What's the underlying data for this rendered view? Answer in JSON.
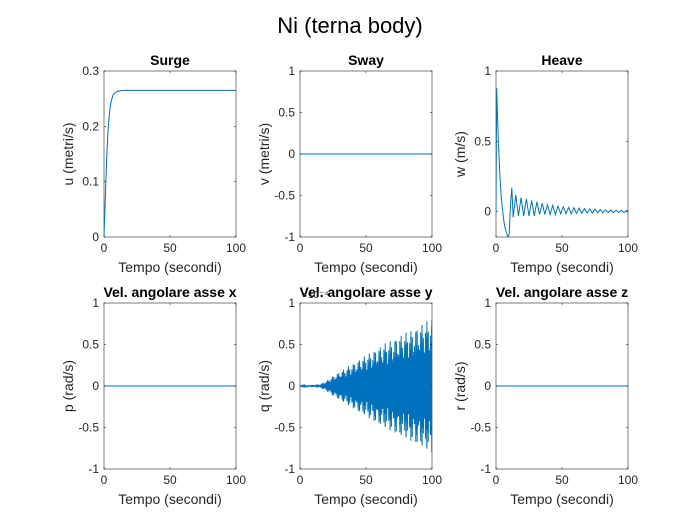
{
  "figure_title": "Ni (terna body)",
  "colors": {
    "line": "#0072BD",
    "axis": "#262626"
  },
  "chart_data": [
    {
      "type": "line",
      "title": "Surge",
      "xlabel": "Tempo (secondi)",
      "ylabel": "u (metri/s)",
      "xlim": [
        0,
        100
      ],
      "ylim": [
        0,
        0.3
      ],
      "xticks": [
        0,
        50,
        100
      ],
      "yticks": [
        0,
        0.1,
        0.2,
        0.3
      ],
      "grid": false,
      "series": [
        {
          "x": [
            0,
            1,
            2,
            3,
            4,
            5,
            6,
            7,
            8,
            10,
            12,
            15,
            20,
            30,
            50,
            75,
            100
          ],
          "y": [
            0,
            0.07,
            0.14,
            0.19,
            0.22,
            0.24,
            0.25,
            0.257,
            0.26,
            0.263,
            0.264,
            0.265,
            0.265,
            0.265,
            0.265,
            0.265,
            0.265
          ]
        }
      ]
    },
    {
      "type": "line",
      "title": "Sway",
      "xlabel": "Tempo (secondi)",
      "ylabel": "v (metri/s)",
      "xlim": [
        0,
        100
      ],
      "ylim": [
        -1,
        1
      ],
      "xticks": [
        0,
        50,
        100
      ],
      "yticks": [
        -1,
        -0.5,
        0,
        0.5,
        1
      ],
      "grid": false,
      "series": [
        {
          "x": [
            0,
            100
          ],
          "y": [
            0,
            0
          ]
        }
      ]
    },
    {
      "type": "line",
      "title": "Heave",
      "xlabel": "Tempo (secondi)",
      "ylabel": "w (m/s)",
      "xlim": [
        0,
        100
      ],
      "ylim": [
        -0.18,
        1
      ],
      "xticks": [
        0,
        50,
        100
      ],
      "yticks": [
        0,
        0.5,
        1
      ],
      "grid": false,
      "series": [
        {
          "x": [
            0,
            0.5,
            1,
            2,
            3,
            4,
            5,
            6,
            7,
            8,
            9,
            10,
            11,
            12,
            13,
            15,
            17,
            19,
            21,
            23,
            25,
            27,
            29,
            31,
            33,
            35,
            37,
            39,
            41,
            43,
            45,
            47,
            49,
            51,
            53,
            55,
            57,
            59,
            61,
            63,
            65,
            67,
            69,
            71,
            73,
            75,
            77,
            79,
            81,
            83,
            85,
            87,
            89,
            91,
            93,
            95,
            97,
            99,
            100
          ],
          "y": [
            0,
            0.88,
            0.72,
            0.45,
            0.25,
            0.1,
            0.01,
            -0.07,
            -0.12,
            -0.15,
            -0.18,
            -0.16,
            0.05,
            0.17,
            -0.04,
            0.12,
            -0.03,
            0.1,
            -0.03,
            0.09,
            -0.03,
            0.08,
            -0.03,
            0.07,
            -0.02,
            0.06,
            -0.02,
            0.05,
            -0.02,
            0.045,
            -0.02,
            0.04,
            -0.015,
            0.035,
            -0.015,
            0.03,
            -0.015,
            0.028,
            -0.012,
            0.025,
            -0.012,
            0.022,
            -0.01,
            0.02,
            -0.01,
            0.018,
            -0.008,
            0.016,
            -0.008,
            0.014,
            -0.007,
            0.012,
            -0.006,
            0.011,
            -0.006,
            0.01,
            -0.005,
            0.009,
            0
          ]
        }
      ]
    },
    {
      "type": "line",
      "title": "Vel. angolare asse x",
      "xlabel": "Tempo (secondi)",
      "ylabel": "p (rad/s)",
      "xlim": [
        0,
        100
      ],
      "ylim": [
        -1,
        1
      ],
      "xticks": [
        0,
        50,
        100
      ],
      "yticks": [
        -1,
        -0.5,
        0,
        0.5,
        1
      ],
      "grid": false,
      "series": [
        {
          "x": [
            0,
            100
          ],
          "y": [
            0,
            0
          ]
        }
      ]
    },
    {
      "type": "line",
      "title": "Vel. angolare asse y",
      "xlabel": "Tempo (secondi)",
      "ylabel": "q (rad/s)",
      "xlim": [
        0,
        100
      ],
      "ylim": [
        -1,
        1
      ],
      "xticks": [
        0,
        50,
        100
      ],
      "yticks": [
        -1,
        -0.5,
        0,
        0.5,
        1
      ],
      "y_multiplier": "×10⁻⁴",
      "grid": false,
      "series": [
        {
          "x": [
            0,
            15,
            20,
            25,
            30,
            35,
            40,
            45,
            50,
            55,
            60,
            65,
            70,
            75,
            80,
            85,
            90,
            95,
            100
          ],
          "y": [
            0,
            0.02,
            0.06,
            0.12,
            0.17,
            0.22,
            0.27,
            0.32,
            0.37,
            0.42,
            0.47,
            0.52,
            0.56,
            0.6,
            0.64,
            0.68,
            0.72,
            0.77,
            0.82
          ],
          "envelope": true
        }
      ]
    },
    {
      "type": "line",
      "title": "Vel. angolare asse z",
      "xlabel": "Tempo (secondi)",
      "ylabel": "r (rad/s)",
      "xlim": [
        0,
        100
      ],
      "ylim": [
        -1,
        1
      ],
      "xticks": [
        0,
        50,
        100
      ],
      "yticks": [
        -1,
        -0.5,
        0,
        0.5,
        1
      ],
      "grid": false,
      "series": [
        {
          "x": [
            0,
            100
          ],
          "y": [
            0,
            0
          ]
        }
      ]
    }
  ]
}
